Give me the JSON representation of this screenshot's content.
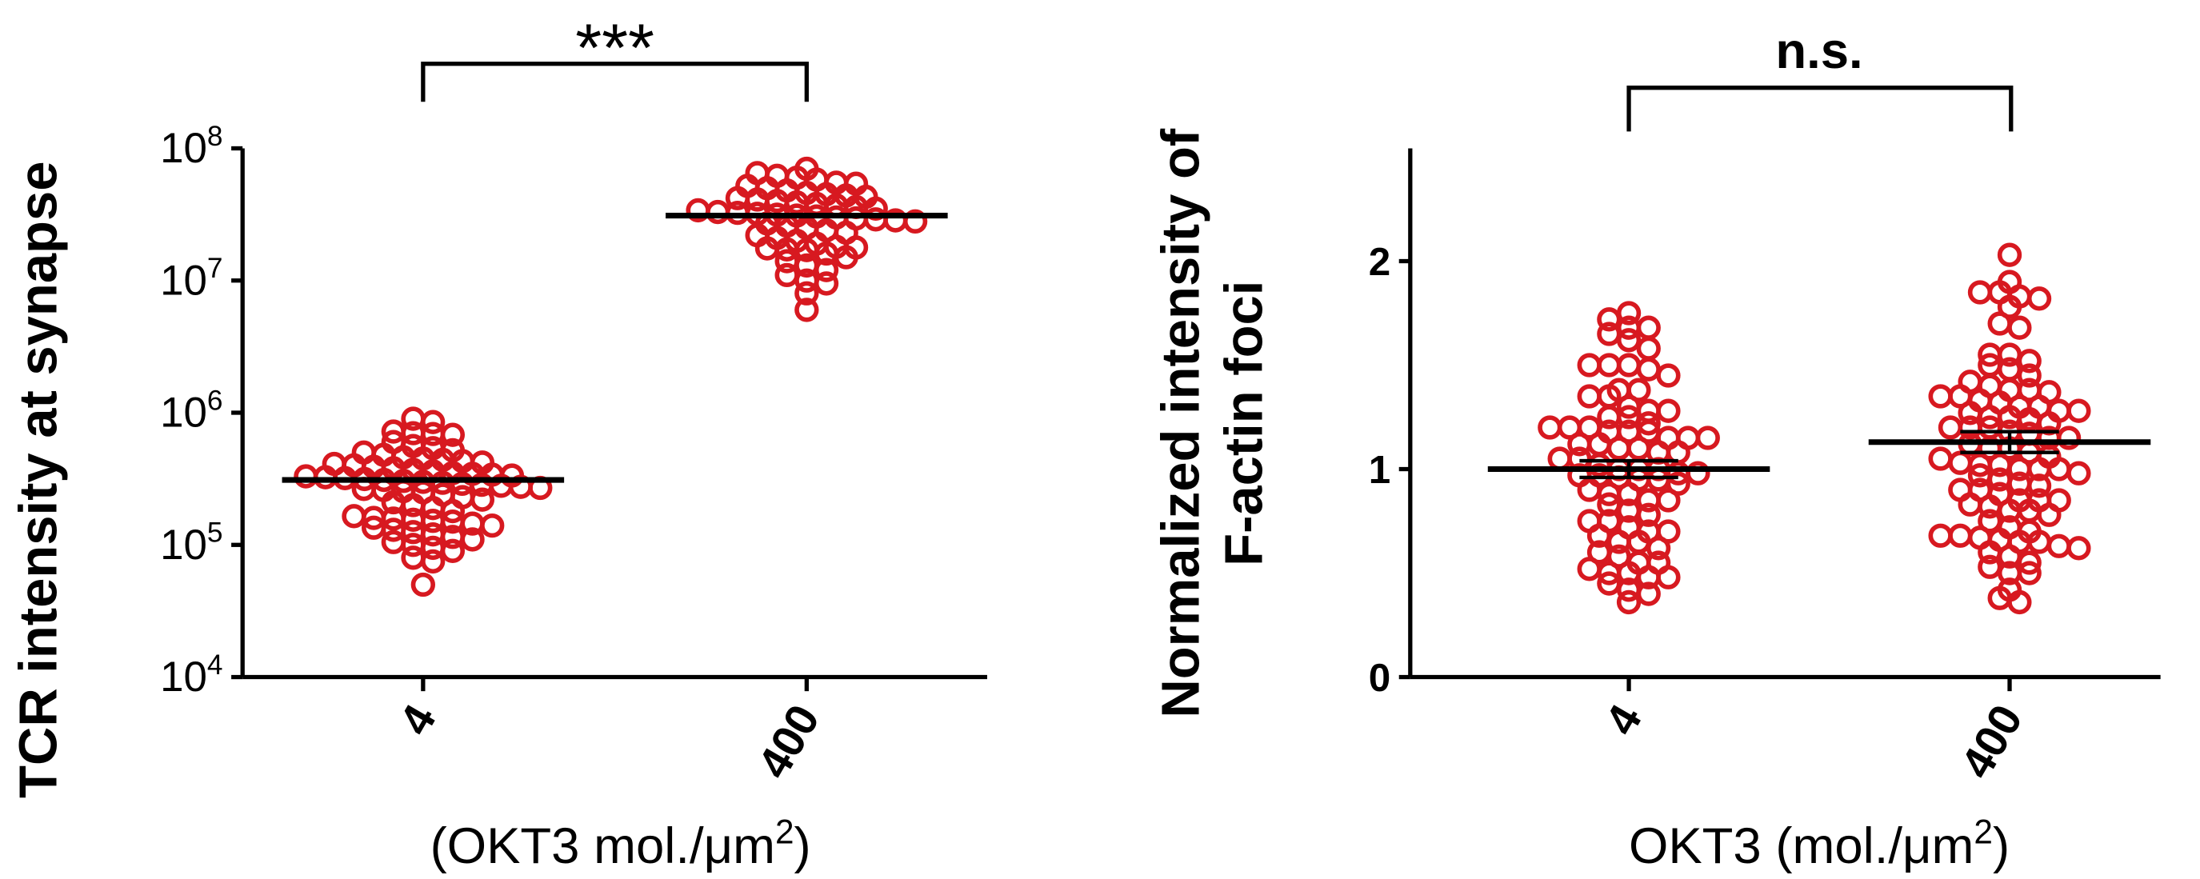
{
  "colors": {
    "points": "#d71920",
    "axes": "#000000",
    "mean_line": "#000000"
  },
  "chart_data": [
    {
      "type": "scatter",
      "subtype": "beeswarm dot plot with mean and SEM",
      "ylabel": "TCR intensity at synapse",
      "xlabel": "(OKT3 mol./μm²)",
      "xlabel_base": "(OKT3 mol./μm",
      "xlabel_sup": "2",
      "xlabel_end": ")",
      "categories": [
        "4",
        "400"
      ],
      "yscale": "log",
      "ylim": [
        10000,
        100000000
      ],
      "yticks": [
        {
          "base": "10",
          "exp": "4",
          "value": 10000
        },
        {
          "base": "10",
          "exp": "5",
          "value": 100000
        },
        {
          "base": "10",
          "exp": "6",
          "value": 1000000
        },
        {
          "base": "10",
          "exp": "7",
          "value": 10000000
        },
        {
          "base": "10",
          "exp": "8",
          "value": 100000000
        }
      ],
      "significance": {
        "label": "***",
        "between": [
          "4",
          "400"
        ]
      },
      "series": [
        {
          "category": "4",
          "mean": 310000,
          "values": [
            900000,
            850000,
            720000,
            700000,
            690000,
            680000,
            600000,
            560000,
            540000,
            520000,
            500000,
            480000,
            460000,
            450000,
            440000,
            430000,
            420000,
            410000,
            400000,
            390000,
            380000,
            370000,
            360000,
            350000,
            345000,
            340000,
            335000,
            330000,
            325000,
            320000,
            315000,
            310000,
            305000,
            300000,
            295000,
            290000,
            285000,
            280000,
            275000,
            270000,
            265000,
            260000,
            255000,
            250000,
            240000,
            230000,
            220000,
            210000,
            200000,
            190000,
            180000,
            165000,
            160000,
            158000,
            155000,
            152000,
            150000,
            145000,
            140000,
            135000,
            130000,
            125000,
            120000,
            115000,
            110000,
            105000,
            100000,
            95000,
            90000,
            80000,
            75000,
            50000
          ]
        },
        {
          "category": "400",
          "mean": 31000000,
          "values": [
            70000000,
            65000000,
            62000000,
            60000000,
            58000000,
            55000000,
            54000000,
            52000000,
            50000000,
            48000000,
            46000000,
            45000000,
            44000000,
            43000000,
            42000000,
            41000000,
            40000000,
            39000000,
            38000000,
            37000000,
            36000000,
            35000000,
            34000000,
            33000000,
            32500000,
            32000000,
            31500000,
            31000000,
            30500000,
            30000000,
            29500000,
            29000000,
            28500000,
            28000000,
            27000000,
            26000000,
            25000000,
            24000000,
            23000000,
            22000000,
            21000000,
            20000000,
            19000000,
            18000000,
            17800000,
            17500000,
            17200000,
            17000000,
            16000000,
            15000000,
            14000000,
            13000000,
            12000000,
            11000000,
            10000000,
            9500000,
            8000000,
            6000000
          ]
        }
      ]
    },
    {
      "type": "scatter",
      "subtype": "beeswarm dot plot with mean and SEM",
      "ylabel_lines": [
        "Normalized intensity of",
        "F-actin foci"
      ],
      "xlabel": "OKT3 (mol./μm²)",
      "xlabel_base": "OKT3 (mol./μm",
      "xlabel_sup": "2",
      "xlabel_end": ")",
      "categories": [
        "4",
        "400"
      ],
      "yscale": "linear",
      "ylim": [
        0,
        2.5
      ],
      "yticks": [
        {
          "label": "0",
          "value": 0
        },
        {
          "label": "1",
          "value": 1
        },
        {
          "label": "2",
          "value": 2
        }
      ],
      "significance": {
        "label": "n.s.",
        "between": [
          "4",
          "400"
        ]
      },
      "series": [
        {
          "category": "4",
          "mean": 1.0,
          "sem": 0.04,
          "values": [
            1.75,
            1.72,
            1.68,
            1.68,
            1.65,
            1.62,
            1.58,
            1.5,
            1.5,
            1.5,
            1.48,
            1.45,
            1.38,
            1.38,
            1.35,
            1.35,
            1.3,
            1.28,
            1.28,
            1.25,
            1.25,
            1.22,
            1.2,
            1.2,
            1.2,
            1.18,
            1.18,
            1.18,
            1.15,
            1.15,
            1.15,
            1.12,
            1.12,
            1.1,
            1.1,
            1.08,
            1.08,
            1.05,
            1.05,
            1.02,
            1.0,
            1.0,
            1.0,
            0.98,
            0.98,
            0.97,
            0.97,
            0.96,
            0.95,
            0.95,
            0.93,
            0.9,
            0.88,
            0.88,
            0.85,
            0.85,
            0.83,
            0.8,
            0.78,
            0.75,
            0.75,
            0.72,
            0.7,
            0.7,
            0.68,
            0.65,
            0.65,
            0.62,
            0.6,
            0.58,
            0.55,
            0.55,
            0.52,
            0.5,
            0.5,
            0.48,
            0.48,
            0.45,
            0.42,
            0.4,
            0.36
          ]
        },
        {
          "category": "400",
          "mean": 1.13,
          "sem": 0.05,
          "values": [
            2.03,
            1.9,
            1.85,
            1.85,
            1.83,
            1.82,
            1.78,
            1.7,
            1.68,
            1.55,
            1.55,
            1.52,
            1.5,
            1.48,
            1.45,
            1.42,
            1.4,
            1.38,
            1.38,
            1.37,
            1.35,
            1.35,
            1.33,
            1.32,
            1.3,
            1.3,
            1.28,
            1.28,
            1.27,
            1.25,
            1.25,
            1.24,
            1.22,
            1.2,
            1.2,
            1.2,
            1.18,
            1.17,
            1.15,
            1.15,
            1.12,
            1.1,
            1.1,
            1.08,
            1.06,
            1.05,
            1.03,
            1.02,
            1.02,
            1.0,
            1.0,
            1.0,
            0.98,
            0.97,
            0.95,
            0.93,
            0.92,
            0.9,
            0.9,
            0.88,
            0.85,
            0.85,
            0.85,
            0.83,
            0.82,
            0.8,
            0.8,
            0.78,
            0.75,
            0.72,
            0.7,
            0.68,
            0.68,
            0.67,
            0.66,
            0.65,
            0.65,
            0.63,
            0.62,
            0.6,
            0.58,
            0.55,
            0.53,
            0.5,
            0.5,
            0.42,
            0.38,
            0.36
          ]
        }
      ]
    }
  ]
}
